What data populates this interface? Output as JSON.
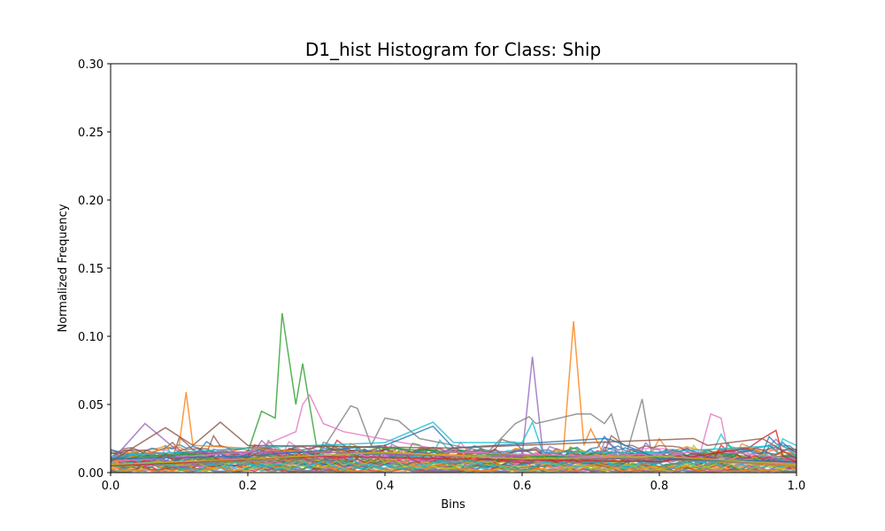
{
  "chart_data": {
    "type": "line",
    "title": "D1_hist Histogram for Class: Ship",
    "xlabel": "Bins",
    "ylabel": "Normalized Frequency",
    "xlim": [
      0.0,
      1.0
    ],
    "ylim": [
      0.0,
      0.3
    ],
    "xticks": [
      "0.0",
      "0.2",
      "0.4",
      "0.6",
      "0.8",
      "1.0"
    ],
    "yticks": [
      "0.00",
      "0.05",
      "0.10",
      "0.15",
      "0.20",
      "0.25",
      "0.30"
    ],
    "grid": false,
    "legend": "none",
    "num_bins": 100,
    "palette": [
      "#1f77b4",
      "#ff7f0e",
      "#2ca02c",
      "#d62728",
      "#9467bd",
      "#8c564b",
      "#e377c2",
      "#7f7f7f",
      "#bcbd22",
      "#17becf"
    ],
    "series_count": 50,
    "noise_band": [
      0.0,
      0.03
    ],
    "series": [
      {
        "color": "#2ca02c",
        "points": [
          [
            0.0,
            0.01
          ],
          [
            0.05,
            0.012
          ],
          [
            0.2,
            0.015
          ],
          [
            0.22,
            0.045
          ],
          [
            0.24,
            0.04
          ],
          [
            0.25,
            0.117
          ],
          [
            0.27,
            0.05
          ],
          [
            0.28,
            0.08
          ],
          [
            0.3,
            0.02
          ],
          [
            0.4,
            0.018
          ],
          [
            0.6,
            0.012
          ],
          [
            0.8,
            0.01
          ],
          [
            1.0,
            0.008
          ]
        ]
      },
      {
        "color": "#ff7f0e",
        "points": [
          [
            0.0,
            0.008
          ],
          [
            0.1,
            0.02
          ],
          [
            0.11,
            0.059
          ],
          [
            0.12,
            0.02
          ],
          [
            0.3,
            0.015
          ],
          [
            0.6,
            0.012
          ],
          [
            0.66,
            0.015
          ],
          [
            0.675,
            0.111
          ],
          [
            0.69,
            0.02
          ],
          [
            0.7,
            0.032
          ],
          [
            0.72,
            0.012
          ],
          [
            1.0,
            0.005
          ]
        ]
      },
      {
        "color": "#9467bd",
        "points": [
          [
            0.0,
            0.008
          ],
          [
            0.05,
            0.036
          ],
          [
            0.1,
            0.015
          ],
          [
            0.3,
            0.015
          ],
          [
            0.5,
            0.012
          ],
          [
            0.6,
            0.012
          ],
          [
            0.615,
            0.085
          ],
          [
            0.63,
            0.015
          ],
          [
            0.7,
            0.01
          ],
          [
            0.8,
            0.01
          ],
          [
            1.0,
            0.008
          ]
        ]
      },
      {
        "color": "#7f7f7f",
        "points": [
          [
            0.0,
            0.005
          ],
          [
            0.3,
            0.01
          ],
          [
            0.35,
            0.049
          ],
          [
            0.36,
            0.047
          ],
          [
            0.38,
            0.02
          ],
          [
            0.4,
            0.04
          ],
          [
            0.42,
            0.038
          ],
          [
            0.45,
            0.025
          ],
          [
            0.55,
            0.015
          ],
          [
            0.59,
            0.036
          ],
          [
            0.61,
            0.041
          ],
          [
            0.62,
            0.036
          ],
          [
            0.68,
            0.043
          ],
          [
            0.7,
            0.043
          ],
          [
            0.72,
            0.036
          ],
          [
            0.73,
            0.043
          ],
          [
            0.75,
            0.01
          ],
          [
            0.775,
            0.054
          ],
          [
            0.79,
            0.01
          ],
          [
            1.0,
            0.006
          ]
        ]
      },
      {
        "color": "#e377c2",
        "points": [
          [
            0.0,
            0.008
          ],
          [
            0.2,
            0.015
          ],
          [
            0.27,
            0.03
          ],
          [
            0.28,
            0.05
          ],
          [
            0.29,
            0.057
          ],
          [
            0.31,
            0.036
          ],
          [
            0.34,
            0.03
          ],
          [
            0.5,
            0.015
          ],
          [
            0.7,
            0.012
          ],
          [
            0.86,
            0.015
          ],
          [
            0.875,
            0.043
          ],
          [
            0.89,
            0.04
          ],
          [
            0.9,
            0.015
          ],
          [
            1.0,
            0.01
          ]
        ]
      },
      {
        "color": "#d62728",
        "points": [
          [
            0.0,
            0.005
          ],
          [
            0.3,
            0.012
          ],
          [
            0.5,
            0.01
          ],
          [
            0.8,
            0.008
          ],
          [
            0.93,
            0.018
          ],
          [
            0.95,
            0.025
          ],
          [
            0.97,
            0.031
          ],
          [
            0.98,
            0.012
          ],
          [
            1.0,
            0.008
          ]
        ]
      },
      {
        "color": "#17becf",
        "points": [
          [
            0.0,
            0.012
          ],
          [
            0.2,
            0.018
          ],
          [
            0.4,
            0.022
          ],
          [
            0.47,
            0.037
          ],
          [
            0.5,
            0.022
          ],
          [
            0.6,
            0.022
          ],
          [
            0.615,
            0.037
          ],
          [
            0.63,
            0.015
          ],
          [
            0.8,
            0.015
          ],
          [
            0.98,
            0.02
          ],
          [
            1.0,
            0.012
          ]
        ]
      },
      {
        "color": "#1f77b4",
        "points": [
          [
            0.0,
            0.01
          ],
          [
            0.2,
            0.012
          ],
          [
            0.4,
            0.02
          ],
          [
            0.45,
            0.03
          ],
          [
            0.47,
            0.034
          ],
          [
            0.5,
            0.018
          ],
          [
            0.72,
            0.025
          ],
          [
            0.73,
            0.024
          ],
          [
            0.8,
            0.01
          ],
          [
            1.0,
            0.008
          ]
        ]
      },
      {
        "color": "#8c564b",
        "points": [
          [
            0.0,
            0.008
          ],
          [
            0.08,
            0.033
          ],
          [
            0.12,
            0.02
          ],
          [
            0.16,
            0.037
          ],
          [
            0.2,
            0.02
          ],
          [
            0.5,
            0.018
          ],
          [
            0.85,
            0.025
          ],
          [
            0.87,
            0.02
          ],
          [
            0.95,
            0.025
          ],
          [
            1.0,
            0.01
          ]
        ]
      },
      {
        "color": "#bcbd22",
        "points": [
          [
            0.0,
            0.006
          ],
          [
            0.2,
            0.01
          ],
          [
            0.4,
            0.015
          ],
          [
            0.6,
            0.01
          ],
          [
            0.8,
            0.012
          ],
          [
            1.0,
            0.006
          ]
        ]
      }
    ]
  }
}
